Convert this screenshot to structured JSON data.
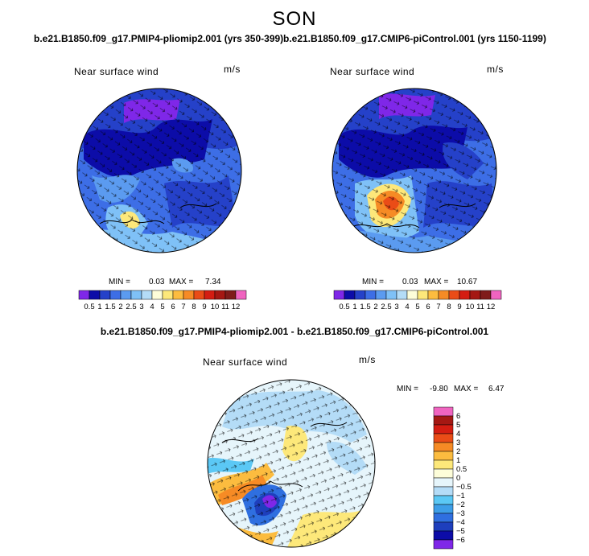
{
  "season": "SON",
  "panels": [
    {
      "case_title": "b.e21.B1850.f09_g17.PMIP4-pliomip2.001 (yrs 350-399)",
      "variable": "Near surface wind",
      "units": "m/s",
      "min_label": "MIN =",
      "min_value": "0.03",
      "max_label": "MAX =",
      "max_value": "7.34"
    },
    {
      "case_title": "b.e21.B1850.f09_g17.CMIP6-piControl.001 (yrs 1150-1199)",
      "variable": "Near surface wind",
      "units": "m/s",
      "min_label": "MIN =",
      "min_value": "0.03",
      "max_label": "MAX =",
      "max_value": "10.67"
    }
  ],
  "abs_colorbar": {
    "labels": [
      "0.5",
      "1",
      "1.5",
      "2",
      "2.5",
      "3",
      "4",
      "5",
      "6",
      "7",
      "8",
      "9",
      "10",
      "11",
      "12"
    ],
    "colors": [
      "#7f27e8",
      "#0c0ca8",
      "#2541c9",
      "#3d6ee6",
      "#5b9bf0",
      "#7fc1f7",
      "#b4dcf7",
      "#fdfdd9",
      "#fde87a",
      "#fcbc3f",
      "#f68b25",
      "#ea4c17",
      "#d41d12",
      "#a51813",
      "#7f1c1a",
      "#f064c0"
    ]
  },
  "difference": {
    "title": "b.e21.B1850.f09_g17.PMIP4-pliomip2.001 - b.e21.B1850.f09_g17.CMIP6-piControl.001",
    "variable": "Near surface wind",
    "units": "m/s",
    "min_label": "MIN =",
    "min_value": "-9.80",
    "max_label": "MAX =",
    "max_value": "6.47"
  },
  "diff_colorbar": {
    "labels": [
      "6",
      "5",
      "4",
      "3",
      "2",
      "1",
      "0.5",
      "0",
      "−0.5",
      "−1",
      "−2",
      "−3",
      "−4",
      "−5",
      "−6"
    ],
    "colors": [
      "#f064c0",
      "#a51813",
      "#d41d12",
      "#ea4c17",
      "#f68b25",
      "#fcbc3f",
      "#fde87a",
      "#fdfdd9",
      "#e6f5fb",
      "#b4dcf7",
      "#5bc8f5",
      "#3d9ee8",
      "#2f6fe0",
      "#1e3fbd",
      "#0c0ca8",
      "#7f27e8"
    ]
  }
}
